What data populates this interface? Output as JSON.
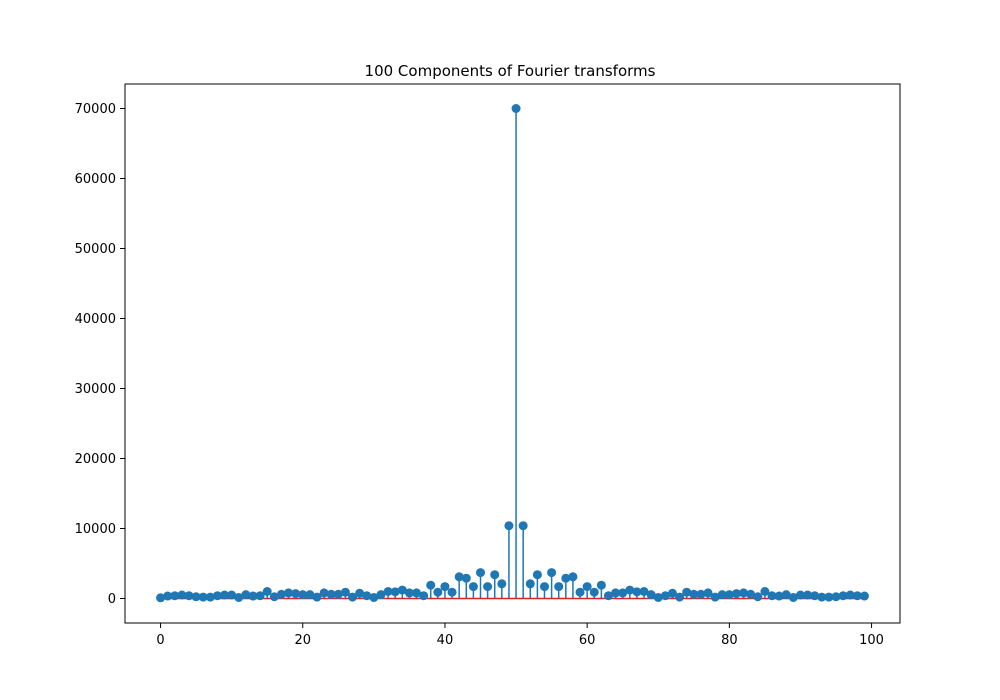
{
  "chart_data": {
    "type": "stem",
    "title": "100 Components of Fourier transforms",
    "xlabel": "",
    "ylabel": "",
    "xlim": [
      -5,
      104
    ],
    "ylim": [
      -3500,
      73500
    ],
    "x_ticks": [
      0,
      20,
      40,
      60,
      80,
      100
    ],
    "x_tick_labels": [
      "0",
      "20",
      "40",
      "60",
      "80",
      "100"
    ],
    "y_ticks": [
      0,
      10000,
      20000,
      30000,
      40000,
      50000,
      60000,
      70000
    ],
    "y_tick_labels": [
      "0",
      "10000",
      "20000",
      "30000",
      "40000",
      "50000",
      "60000",
      "70000"
    ],
    "grid": false,
    "colors": {
      "stem": "#1f77b4",
      "marker": "#1f77b4",
      "baseline": "#d62728"
    },
    "x": [
      0,
      1,
      2,
      3,
      4,
      5,
      6,
      7,
      8,
      9,
      10,
      11,
      12,
      13,
      14,
      15,
      16,
      17,
      18,
      19,
      20,
      21,
      22,
      23,
      24,
      25,
      26,
      27,
      28,
      29,
      30,
      31,
      32,
      33,
      34,
      35,
      36,
      37,
      38,
      39,
      40,
      41,
      42,
      43,
      44,
      45,
      46,
      47,
      48,
      49,
      50,
      51,
      52,
      53,
      54,
      55,
      56,
      57,
      58,
      59,
      60,
      61,
      62,
      63,
      64,
      65,
      66,
      67,
      68,
      69,
      70,
      71,
      72,
      73,
      74,
      75,
      76,
      77,
      78,
      79,
      80,
      81,
      82,
      83,
      84,
      85,
      86,
      87,
      88,
      89,
      90,
      91,
      92,
      93,
      94,
      95,
      96,
      97,
      98,
      99
    ],
    "values": [
      100,
      350,
      400,
      500,
      400,
      250,
      200,
      200,
      400,
      500,
      500,
      150,
      550,
      350,
      400,
      1000,
      250,
      600,
      800,
      700,
      550,
      550,
      200,
      800,
      600,
      600,
      900,
      200,
      750,
      400,
      150,
      550,
      1000,
      950,
      1200,
      800,
      800,
      400,
      1900,
      900,
      1700,
      900,
      3100,
      2900,
      1700,
      3700,
      1700,
      3400,
      2100,
      10400,
      70000,
      10400,
      2100,
      3400,
      1700,
      3700,
      1700,
      2900,
      3100,
      900,
      1700,
      900,
      1900,
      400,
      800,
      800,
      1200,
      950,
      1000,
      550,
      150,
      400,
      750,
      200,
      900,
      600,
      600,
      800,
      200,
      550,
      550,
      700,
      800,
      600,
      250,
      1000,
      400,
      350,
      550,
      150,
      500,
      500,
      400,
      200,
      200,
      250,
      400,
      500,
      400,
      350
    ]
  }
}
